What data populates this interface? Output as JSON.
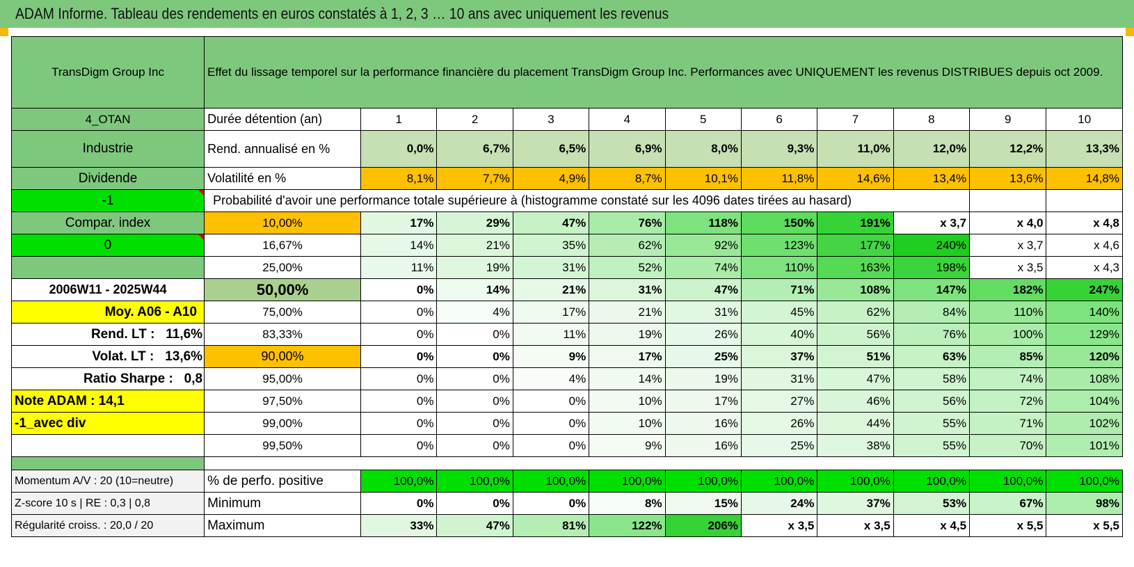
{
  "title": "ADAM Informe. Tableau des rendements en euros constatés à 1, 2, 3 … 10 ans avec uniquement les revenus",
  "header": {
    "company": "TransDigm Group Inc",
    "description": "Effet du lissage temporel sur la performance financière du placement TransDigm Group Inc. Performances avec UNIQUEMENT les revenus DISTRIBUES depuis oct 2009."
  },
  "left_labels": {
    "otan": "4_OTAN",
    "sector": "Industrie",
    "dividend": "Dividende",
    "minus_one": "-1",
    "compar_index": "Compar. index",
    "zero": "0",
    "period": "2006W11 - 2025W44",
    "moy": "Moy. A06 - A10",
    "rend_lt_label": "Rend. LT :",
    "rend_lt_value": "11,6%",
    "volat_lt_label": "Volat. LT :",
    "volat_lt_value": "13,6%",
    "sharpe_label": "Ratio Sharpe :",
    "sharpe_value": "0,8",
    "note_adam": "Note ADAM : 14,1",
    "avec_div": "-1_avec div"
  },
  "row_labels": {
    "duree": "Durée détention (an)",
    "rend": "Rend. annualisé en %",
    "vol": "Volatilité en %",
    "prob": "Probabilité d'avoir une performance totale supérieure à (histogramme constaté sur les 4096 dates tirées au hasard)"
  },
  "years": [
    "1",
    "2",
    "3",
    "4",
    "5",
    "6",
    "7",
    "8",
    "9",
    "10"
  ],
  "rend_annualise": [
    "0,0%",
    "6,7%",
    "6,5%",
    "6,9%",
    "8,0%",
    "9,3%",
    "11,0%",
    "12,0%",
    "12,2%",
    "13,3%"
  ],
  "volatilite": [
    "8,1%",
    "7,7%",
    "4,9%",
    "8,7%",
    "10,1%",
    "11,8%",
    "14,6%",
    "13,4%",
    "13,6%",
    "14,8%"
  ],
  "probabilities": [
    {
      "threshold": "10,00%",
      "values": [
        "17%",
        "29%",
        "47%",
        "76%",
        "118%",
        "150%",
        "191%",
        "x 3,7",
        "x 4,0",
        "x 4,8"
      ]
    },
    {
      "threshold": "16,67%",
      "values": [
        "14%",
        "21%",
        "35%",
        "62%",
        "92%",
        "123%",
        "177%",
        "240%",
        "x 3,7",
        "x 4,6"
      ]
    },
    {
      "threshold": "25,00%",
      "values": [
        "11%",
        "19%",
        "31%",
        "52%",
        "74%",
        "110%",
        "163%",
        "198%",
        "x 3,5",
        "x 4,3"
      ]
    },
    {
      "threshold": "50,00%",
      "values": [
        "0%",
        "14%",
        "21%",
        "31%",
        "47%",
        "71%",
        "108%",
        "147%",
        "182%",
        "247%"
      ]
    },
    {
      "threshold": "75,00%",
      "values": [
        "0%",
        "4%",
        "17%",
        "21%",
        "31%",
        "45%",
        "62%",
        "84%",
        "110%",
        "140%"
      ]
    },
    {
      "threshold": "83,33%",
      "values": [
        "0%",
        "0%",
        "11%",
        "19%",
        "26%",
        "40%",
        "56%",
        "76%",
        "100%",
        "129%"
      ]
    },
    {
      "threshold": "90,00%",
      "values": [
        "0%",
        "0%",
        "9%",
        "17%",
        "25%",
        "37%",
        "51%",
        "63%",
        "85%",
        "120%"
      ]
    },
    {
      "threshold": "95,00%",
      "values": [
        "0%",
        "0%",
        "4%",
        "14%",
        "19%",
        "31%",
        "47%",
        "58%",
        "74%",
        "108%"
      ]
    },
    {
      "threshold": "97,50%",
      "values": [
        "0%",
        "0%",
        "0%",
        "10%",
        "17%",
        "27%",
        "46%",
        "56%",
        "72%",
        "104%"
      ]
    },
    {
      "threshold": "99,00%",
      "values": [
        "0%",
        "0%",
        "0%",
        "10%",
        "16%",
        "26%",
        "44%",
        "55%",
        "71%",
        "102%"
      ]
    },
    {
      "threshold": "99,50%",
      "values": [
        "0%",
        "0%",
        "0%",
        "9%",
        "16%",
        "25%",
        "38%",
        "55%",
        "70%",
        "101%"
      ]
    }
  ],
  "bottom": [
    {
      "left": "Momentum A/V : 20 (10=neutre)",
      "label": "% de perfo. positive",
      "values": [
        "100,0%",
        "100,0%",
        "100,0%",
        "100,0%",
        "100,0%",
        "100,0%",
        "100,0%",
        "100,0%",
        "100,0%",
        "100,0%"
      ]
    },
    {
      "left": "Z-score 10 s | RE : 0,3 | 0,8",
      "label": "Minimum",
      "values": [
        "0%",
        "0%",
        "0%",
        "8%",
        "15%",
        "24%",
        "37%",
        "53%",
        "67%",
        "98%"
      ]
    },
    {
      "left": "Régularité croiss. : 20,0 / 20",
      "label": "Maximum",
      "values": [
        "33%",
        "47%",
        "81%",
        "122%",
        "206%",
        "x 3,5",
        "x 3,5",
        "x 4,5",
        "x 5,5",
        "x 5,5"
      ]
    }
  ],
  "colors": {
    "header_green": "#7ec87e",
    "bright_green": "#00e000",
    "yellow": "#ffff00",
    "orange": "#ffc000",
    "light_green": "#c6e0b4",
    "red_text": "#e00000"
  }
}
